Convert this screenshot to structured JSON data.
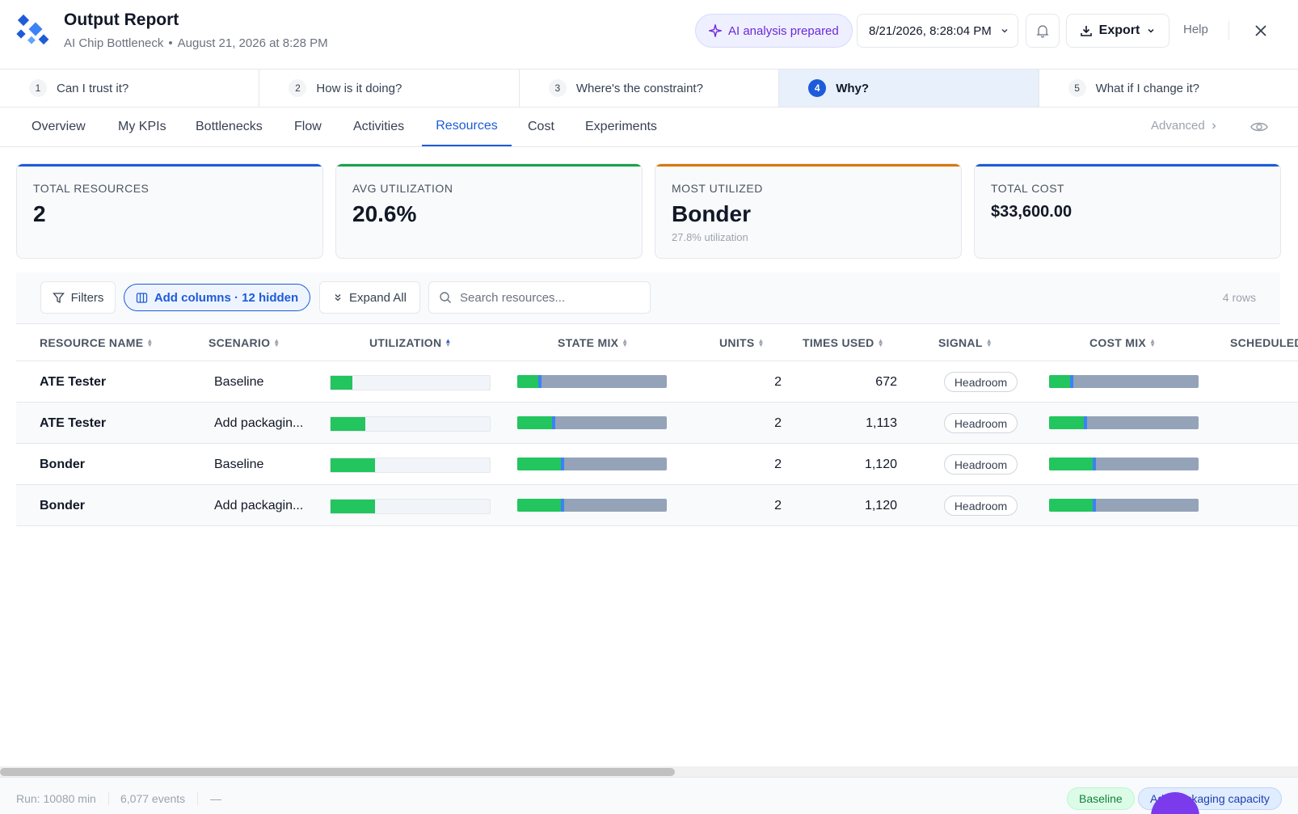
{
  "header": {
    "title": "Output Report",
    "subtitle_project": "AI Chip Bottleneck",
    "subtitle_sep": "•",
    "subtitle_date": "August 21, 2026 at 8:28 PM",
    "ai_pill": "AI analysis prepared",
    "date_select": "8/21/2026, 8:28:04 PM",
    "export_label": "Export",
    "help_label": "Help"
  },
  "steps": [
    {
      "num": "1",
      "label": "Can I trust it?"
    },
    {
      "num": "2",
      "label": "How is it doing?"
    },
    {
      "num": "3",
      "label": "Where's the constraint?"
    },
    {
      "num": "4",
      "label": "Why?"
    },
    {
      "num": "5",
      "label": "What if I change it?"
    }
  ],
  "tabs": [
    "Overview",
    "My KPIs",
    "Bottlenecks",
    "Flow",
    "Activities",
    "Resources",
    "Cost",
    "Experiments"
  ],
  "active_tab": "Resources",
  "advanced_label": "Advanced",
  "cards": [
    {
      "label": "TOTAL RESOURCES",
      "value": "2",
      "color": "#1d5bd8"
    },
    {
      "label": "AVG UTILIZATION",
      "value": "20.6%",
      "color": "#16a34a"
    },
    {
      "label": "MOST UTILIZED",
      "value": "Bonder",
      "sub": "27.8% utilization",
      "color": "#d97706"
    },
    {
      "label": "TOTAL COST",
      "value": "$33,600.00",
      "color": "#1d5bd8"
    }
  ],
  "toolbar": {
    "filters": "Filters",
    "add_columns": "Add columns · 12 hidden",
    "expand_all": "Expand All",
    "search_placeholder": "Search resources...",
    "row_count": "4 rows"
  },
  "columns": [
    "RESOURCE NAME",
    "SCENARIO",
    "UTILIZATION",
    "STATE MIX",
    "UNITS",
    "TIMES USED",
    "SIGNAL",
    "COST MIX",
    "SCHEDULED"
  ],
  "rows": [
    {
      "name": "ATE Tester",
      "scenario": "Baseline",
      "utilization": 0.135,
      "state_mix_busy": 0.14,
      "units": "2",
      "times_used": "672",
      "signal": "Headroom",
      "cost_mix_busy": 0.14
    },
    {
      "name": "ATE Tester",
      "scenario": "Add packagin...",
      "utilization": 0.22,
      "state_mix_busy": 0.23,
      "units": "2",
      "times_used": "1,113",
      "signal": "Headroom",
      "cost_mix_busy": 0.23
    },
    {
      "name": "Bonder",
      "scenario": "Baseline",
      "utilization": 0.278,
      "state_mix_busy": 0.29,
      "units": "2",
      "times_used": "1,120",
      "signal": "Headroom",
      "cost_mix_busy": 0.29
    },
    {
      "name": "Bonder",
      "scenario": "Add packagin...",
      "utilization": 0.278,
      "state_mix_busy": 0.29,
      "units": "2",
      "times_used": "1,120",
      "signal": "Headroom",
      "cost_mix_busy": 0.29
    }
  ],
  "status": {
    "run": "Run: 10080 min",
    "events": "6,077 events",
    "dash": "—",
    "chip_baseline": "Baseline",
    "chip_scenario": "Add packaging capacity"
  },
  "colors": {
    "accent": "#1d5bd8",
    "green": "#22c55e",
    "gray_bar": "#94a3b8",
    "ai_purple": "#6d28d9"
  }
}
